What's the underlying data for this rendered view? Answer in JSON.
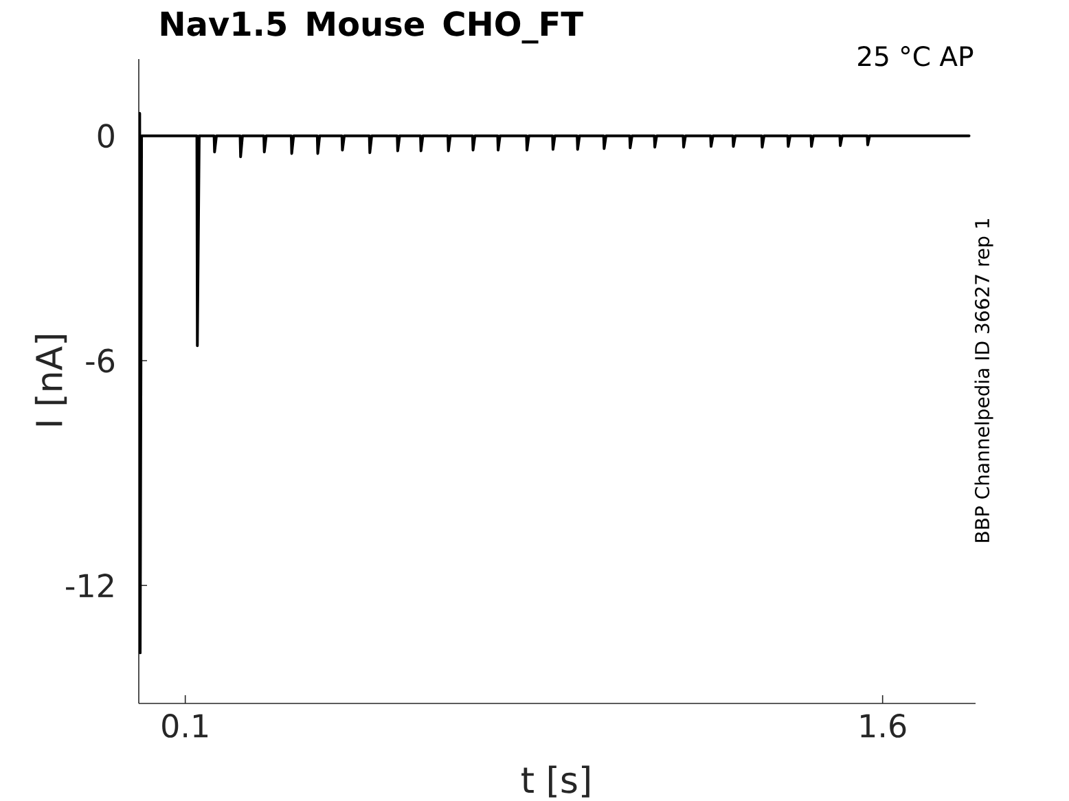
{
  "chart_data": {
    "type": "line",
    "title": "Nav1.5  Mouse  CHO_FT",
    "xlabel": "t [s]",
    "ylabel": "I [nA]",
    "annotations": [
      "25 °C  AP",
      "BBP Channelpedia ID 36627 rep 1"
    ],
    "x": [
      0,
      0.002,
      0.003,
      0.006,
      0.125,
      0.126,
      0.13,
      0.162,
      0.163,
      0.167,
      0.218,
      0.219,
      0.223,
      0.269,
      0.27,
      0.274,
      0.328,
      0.329,
      0.333,
      0.384,
      0.385,
      0.389,
      0.437,
      0.438,
      0.442,
      0.496,
      0.497,
      0.501,
      0.556,
      0.557,
      0.561,
      0.606,
      0.607,
      0.611,
      0.665,
      0.666,
      0.67,
      0.718,
      0.719,
      0.723,
      0.772,
      0.773,
      0.777,
      0.834,
      0.835,
      0.839,
      0.89,
      0.891,
      0.895,
      0.943,
      0.944,
      0.948,
      1.0,
      1.001,
      1.005,
      1.056,
      1.057,
      1.061,
      1.109,
      1.11,
      1.114,
      1.171,
      1.172,
      1.176,
      1.23,
      1.231,
      1.235,
      1.278,
      1.279,
      1.283,
      1.34,
      1.341,
      1.345,
      1.396,
      1.397,
      1.401,
      1.446,
      1.447,
      1.451,
      1.508,
      1.509,
      1.513,
      1.567,
      1.568,
      1.572,
      1.786
    ],
    "series": [
      {
        "color": "#000000",
        "values": [
          0,
          0.6,
          -13.8,
          0,
          0,
          -5.6,
          0,
          0,
          -0.43,
          0,
          0,
          -0.56,
          0,
          0,
          -0.43,
          0,
          0,
          -0.47,
          0,
          0,
          -0.47,
          0,
          0,
          -0.38,
          0,
          0,
          -0.45,
          0,
          0,
          -0.4,
          0,
          0,
          -0.4,
          0,
          0,
          -0.4,
          0,
          0,
          -0.38,
          0,
          0,
          -0.38,
          0,
          0,
          -0.38,
          0,
          0,
          -0.36,
          0,
          0,
          -0.36,
          0,
          0,
          -0.34,
          0,
          0,
          -0.32,
          0,
          0,
          -0.3,
          0,
          0,
          -0.3,
          0,
          0,
          -0.28,
          0,
          0,
          -0.28,
          0,
          0,
          -0.3,
          0,
          0,
          -0.28,
          0,
          0,
          -0.28,
          0,
          0,
          -0.26,
          0,
          0,
          -0.24,
          0,
          0
        ]
      }
    ],
    "xlim": [
      0,
      1.8
    ],
    "ylim": [
      -15.15,
      2.05
    ],
    "xticks": [
      0.1,
      1.6
    ],
    "yticks": [
      -12,
      -6,
      0
    ],
    "marker": "none",
    "line_style": "solid"
  }
}
